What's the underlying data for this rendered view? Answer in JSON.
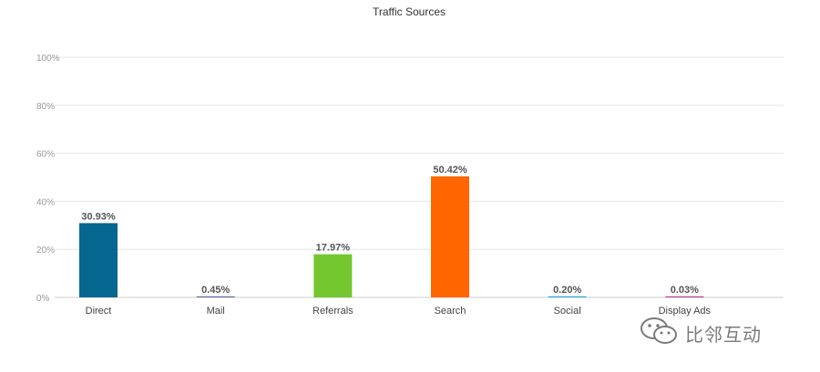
{
  "chart_data": {
    "type": "bar",
    "title": "Traffic Sources",
    "categories": [
      "Direct",
      "Mail",
      "Referrals",
      "Search",
      "Social",
      "Display Ads"
    ],
    "values": [
      30.93,
      0.45,
      17.97,
      50.42,
      0.2,
      0.03
    ],
    "data_labels": [
      "30.93%",
      "0.45%",
      "17.97%",
      "50.42%",
      "0.20%",
      "0.03%"
    ],
    "colors": [
      "#05668f",
      "#5b6ea6",
      "#75c72f",
      "#ff6600",
      "#2aa8d6",
      "#c9379b"
    ],
    "ylim": [
      0,
      100
    ],
    "yticks": [
      0,
      20,
      40,
      60,
      80,
      100
    ],
    "ytick_labels": [
      "0%",
      "20%",
      "40%",
      "60%",
      "80%",
      "100%"
    ],
    "grid": true,
    "xlabel": "",
    "ylabel": ""
  },
  "watermark": {
    "text": "比邻互动",
    "icon": "wechat-icon"
  }
}
